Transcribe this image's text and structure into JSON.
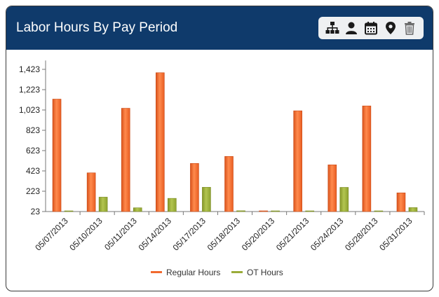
{
  "panel": {
    "title": "Labor Hours By Pay Period"
  },
  "toolbar": {
    "icons": [
      "org-chart-icon",
      "person-icon",
      "calendar-icon",
      "location-pin-icon",
      "trash-icon"
    ]
  },
  "colors": {
    "header": "#0f3a6b",
    "regular": "#f26a2e",
    "ot": "#9aac3a"
  },
  "chart_data": {
    "type": "bar",
    "title": "Labor Hours By Pay Period",
    "xlabel": "",
    "ylabel": "",
    "categories": [
      "05/07/2013",
      "05/10/2013",
      "05/11/2013",
      "05/14/2013",
      "05/17/2013",
      "05/18/2013",
      "05/20/2013",
      "05/21/2013",
      "05/24/2013",
      "05/28/2013",
      "05/31/2013"
    ],
    "series": [
      {
        "name": "Regular Hours",
        "values": [
          1130,
          404,
          1040,
          1390,
          497,
          566,
          30,
          1015,
          483,
          1063,
          207
        ]
      },
      {
        "name": "OT Hours",
        "values": [
          23,
          165,
          60,
          153,
          262,
          31,
          23,
          23,
          261,
          26,
          62
        ]
      }
    ],
    "yticks": [
      23,
      223,
      423,
      623,
      823,
      1023,
      1223,
      1423
    ],
    "ytick_labels": [
      "23",
      "223",
      "423",
      "623",
      "823",
      "1,023",
      "1,223",
      "1,423"
    ],
    "ylim": [
      23,
      1510
    ],
    "legend_position": "bottom-center",
    "grid": false
  }
}
